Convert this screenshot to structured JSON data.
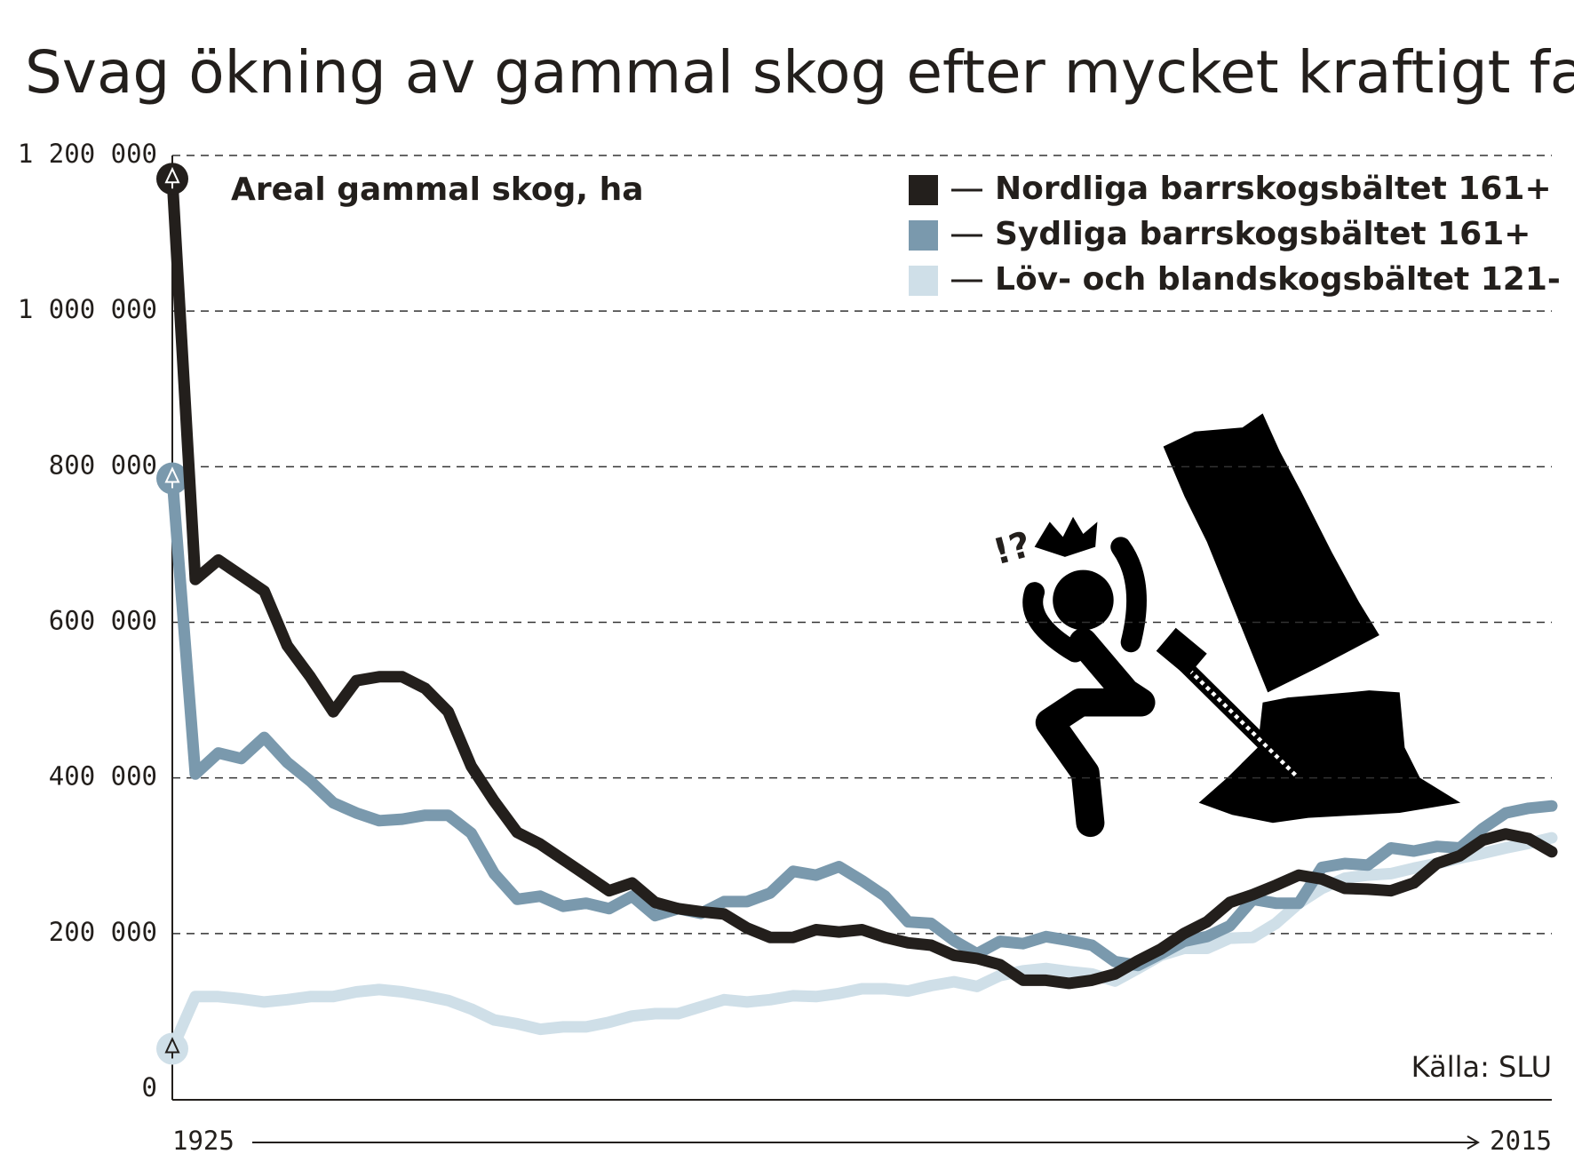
{
  "chart_data": {
    "type": "line",
    "title": "Svag ökning av gammal skog efter mycket kraftigt fall",
    "subtitle": "Areal gammal skog, ha",
    "source": "Källa: SLU",
    "annotation": "!?",
    "x": [
      1925,
      1926.5,
      1928,
      1929.5,
      1931,
      1932.5,
      1934,
      1935.5,
      1937,
      1938.5,
      1940,
      1941.5,
      1943,
      1944.5,
      1946,
      1947.5,
      1949,
      1950.5,
      1952,
      1953.5,
      1955,
      1956.5,
      1958,
      1959.5,
      1961,
      1962.5,
      1964,
      1965.5,
      1967,
      1968.5,
      1970,
      1971.5,
      1973,
      1974.5,
      1976,
      1977.5,
      1979,
      1980.5,
      1982,
      1983.5,
      1985,
      1986.5,
      1988,
      1989.5,
      1991,
      1992.5,
      1994,
      1995.5,
      1997,
      1998.5,
      2000,
      2001.5,
      2003,
      2004.5,
      2006,
      2007.5,
      2009,
      2010.5,
      2012,
      2013.5,
      2015
    ],
    "series": [
      {
        "name": "Nordliga barrskogsbältet 161+",
        "color": "#231f1c",
        "values": [
          1170000,
          655000,
          680000,
          660000,
          640000,
          570000,
          530000,
          485000,
          525000,
          530000,
          530000,
          515000,
          485000,
          415000,
          370000,
          330000,
          315000,
          295000,
          275000,
          255000,
          265000,
          240000,
          232000,
          228000,
          225000,
          207000,
          195000,
          195000,
          205000,
          202000,
          205000,
          195000,
          188000,
          185000,
          172000,
          168000,
          160000,
          140000,
          140000,
          136000,
          140000,
          148000,
          165000,
          180000,
          200000,
          215000,
          240000,
          250000,
          262000,
          275000,
          270000,
          258000,
          257000,
          255000,
          265000,
          290000,
          300000,
          320000,
          328000,
          322000,
          305000
        ]
      },
      {
        "name": "Sydliga barrskogsbältet 161+",
        "color": "#7a99ad",
        "values": [
          785000,
          405000,
          432000,
          425000,
          452000,
          420000,
          396000,
          368000,
          355000,
          345000,
          347000,
          352000,
          352000,
          329000,
          277000,
          244000,
          248000,
          235000,
          239000,
          232000,
          248000,
          223000,
          232000,
          226000,
          241000,
          241000,
          252000,
          280000,
          275000,
          286000,
          268000,
          248000,
          215000,
          213000,
          191000,
          174000,
          190000,
          187000,
          196000,
          191000,
          185000,
          164000,
          159000,
          174000,
          190000,
          196000,
          210000,
          244000,
          239000,
          239000,
          285000,
          290000,
          288000,
          310000,
          306000,
          312000,
          310000,
          335000,
          355000,
          361000,
          364000
        ]
      },
      {
        "name": "Löv- och blandskogsbältet 121-",
        "color": "#cfdfe8",
        "values": [
          52000,
          119000,
          119000,
          116000,
          112000,
          115000,
          119000,
          119000,
          125000,
          128000,
          125000,
          120000,
          114000,
          103000,
          89000,
          84000,
          77000,
          80000,
          80000,
          86000,
          94000,
          97000,
          97000,
          106000,
          115000,
          112000,
          115000,
          120000,
          119000,
          123000,
          129000,
          129000,
          126000,
          133000,
          138000,
          132000,
          146000,
          152000,
          155000,
          151000,
          148000,
          139000,
          155000,
          172000,
          181000,
          181000,
          194000,
          195000,
          213000,
          239000,
          258000,
          271000,
          275000,
          277000,
          284000,
          290000,
          297000,
          303000,
          310000,
          316000,
          323000
        ]
      }
    ],
    "xlim": [
      1925,
      2015
    ],
    "xticks": [
      1925,
      2015
    ],
    "ylim": [
      0,
      1200000
    ],
    "yticks": [
      0,
      {
        "value": 200000,
        "label": "200 000"
      },
      {
        "value": 400000,
        "label": "400 000"
      },
      {
        "value": 600000,
        "label": "600 000"
      },
      {
        "value": 800000,
        "label": "800 000"
      },
      {
        "value": 1000000,
        "label": "1 000 000"
      },
      {
        "value": 1200000,
        "label": "1 200 000"
      }
    ],
    "grid": true,
    "legend": "top-right"
  }
}
